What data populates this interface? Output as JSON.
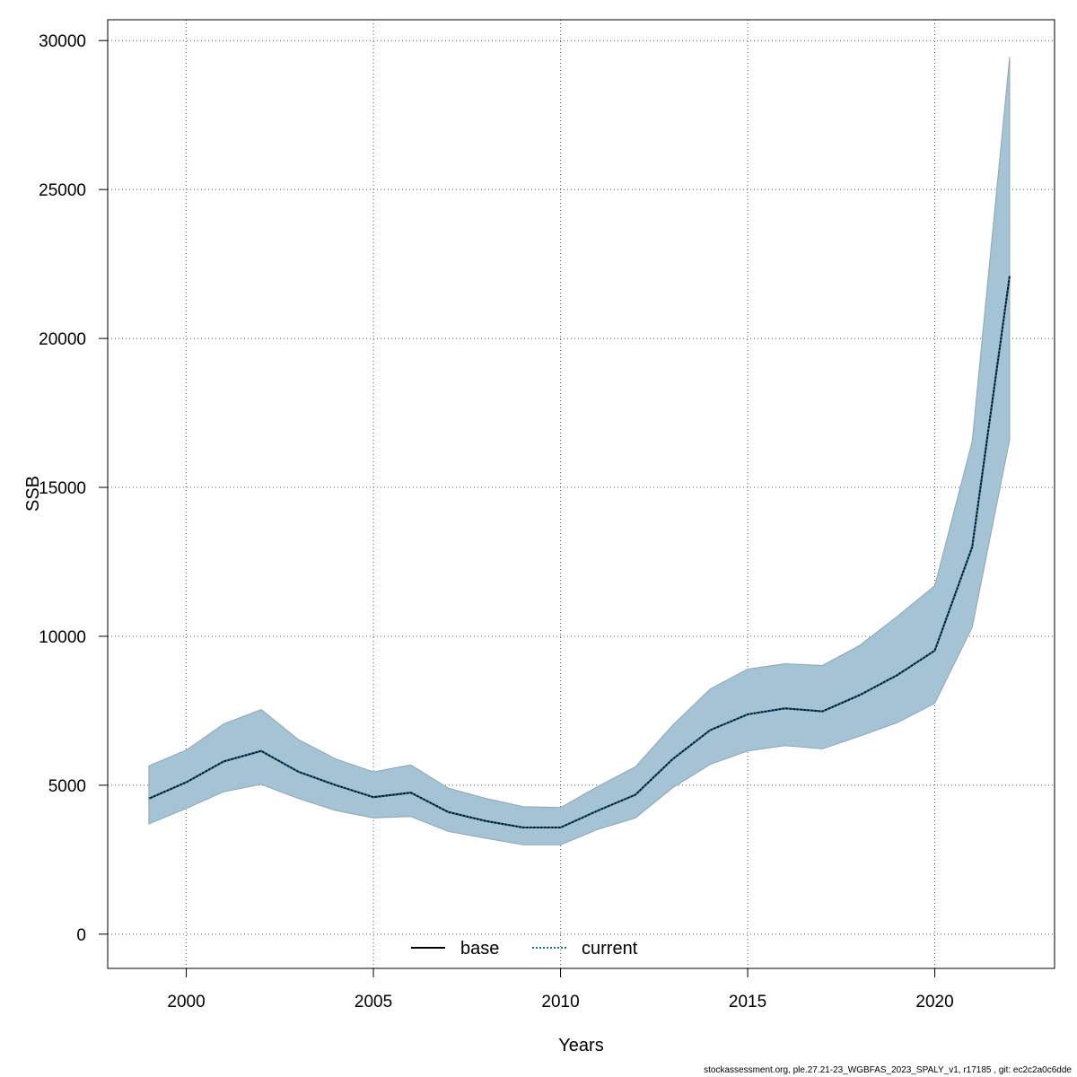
{
  "chart_data": {
    "type": "line",
    "title": "",
    "xlabel": "Years",
    "ylabel": "SSB",
    "xlim": [
      1997.9,
      2023.2
    ],
    "ylim": [
      -1150,
      30700
    ],
    "x_ticks": [
      2000,
      2005,
      2010,
      2015,
      2020
    ],
    "x_tick_labels": [
      "2000",
      "2005",
      "2010",
      "2015",
      "2020"
    ],
    "y_ticks": [
      0,
      5000,
      10000,
      15000,
      20000,
      25000,
      30000
    ],
    "y_tick_labels": [
      "0",
      "5000",
      "10000",
      "15000",
      "20000",
      "25000",
      "30000"
    ],
    "grid": true,
    "legend_position": "bottom-center",
    "x": [
      1999,
      2000,
      2001,
      2002,
      2003,
      2004,
      2005,
      2006,
      2007,
      2008,
      2009,
      2010,
      2011,
      2012,
      2013,
      2014,
      2015,
      2016,
      2017,
      2018,
      2019,
      2020,
      2021,
      2022
    ],
    "series": [
      {
        "name": "base",
        "style": "solid",
        "color": "#000000",
        "values": [
          4550,
          5100,
          5800,
          6150,
          5450,
          5000,
          4600,
          4750,
          4100,
          3800,
          3580,
          3580,
          4150,
          4680,
          5880,
          6850,
          7380,
          7580,
          7480,
          8030,
          8700,
          9520,
          13000,
          22100
        ]
      },
      {
        "name": "current",
        "style": "dotted",
        "color": "#1a6d9a",
        "values": [
          4550,
          5100,
          5800,
          6150,
          5450,
          5000,
          4600,
          4750,
          4100,
          3800,
          3580,
          3580,
          4150,
          4680,
          5880,
          6850,
          7380,
          7580,
          7480,
          8030,
          8700,
          9520,
          13000,
          22100
        ]
      }
    ],
    "confidence_band": {
      "lower": [
        3700,
        4220,
        4780,
        5030,
        4550,
        4150,
        3900,
        3950,
        3450,
        3220,
        3000,
        3000,
        3520,
        3900,
        4920,
        5700,
        6150,
        6330,
        6220,
        6650,
        7100,
        7750,
        10300,
        16600
      ],
      "upper": [
        5650,
        6180,
        7060,
        7540,
        6530,
        5880,
        5450,
        5680,
        4900,
        4560,
        4280,
        4250,
        4960,
        5620,
        7020,
        8230,
        8900,
        9080,
        9020,
        9700,
        10670,
        11700,
        16550,
        29450
      ],
      "fill_color": "#a4c4d6",
      "stroke_color": "#8fa6b3"
    }
  },
  "footer_text": "stockassessment.org, ple.27.21-23_WGBFAS_2023_SPALY_v1, r17185 , git: ec2c2a0c6dde"
}
